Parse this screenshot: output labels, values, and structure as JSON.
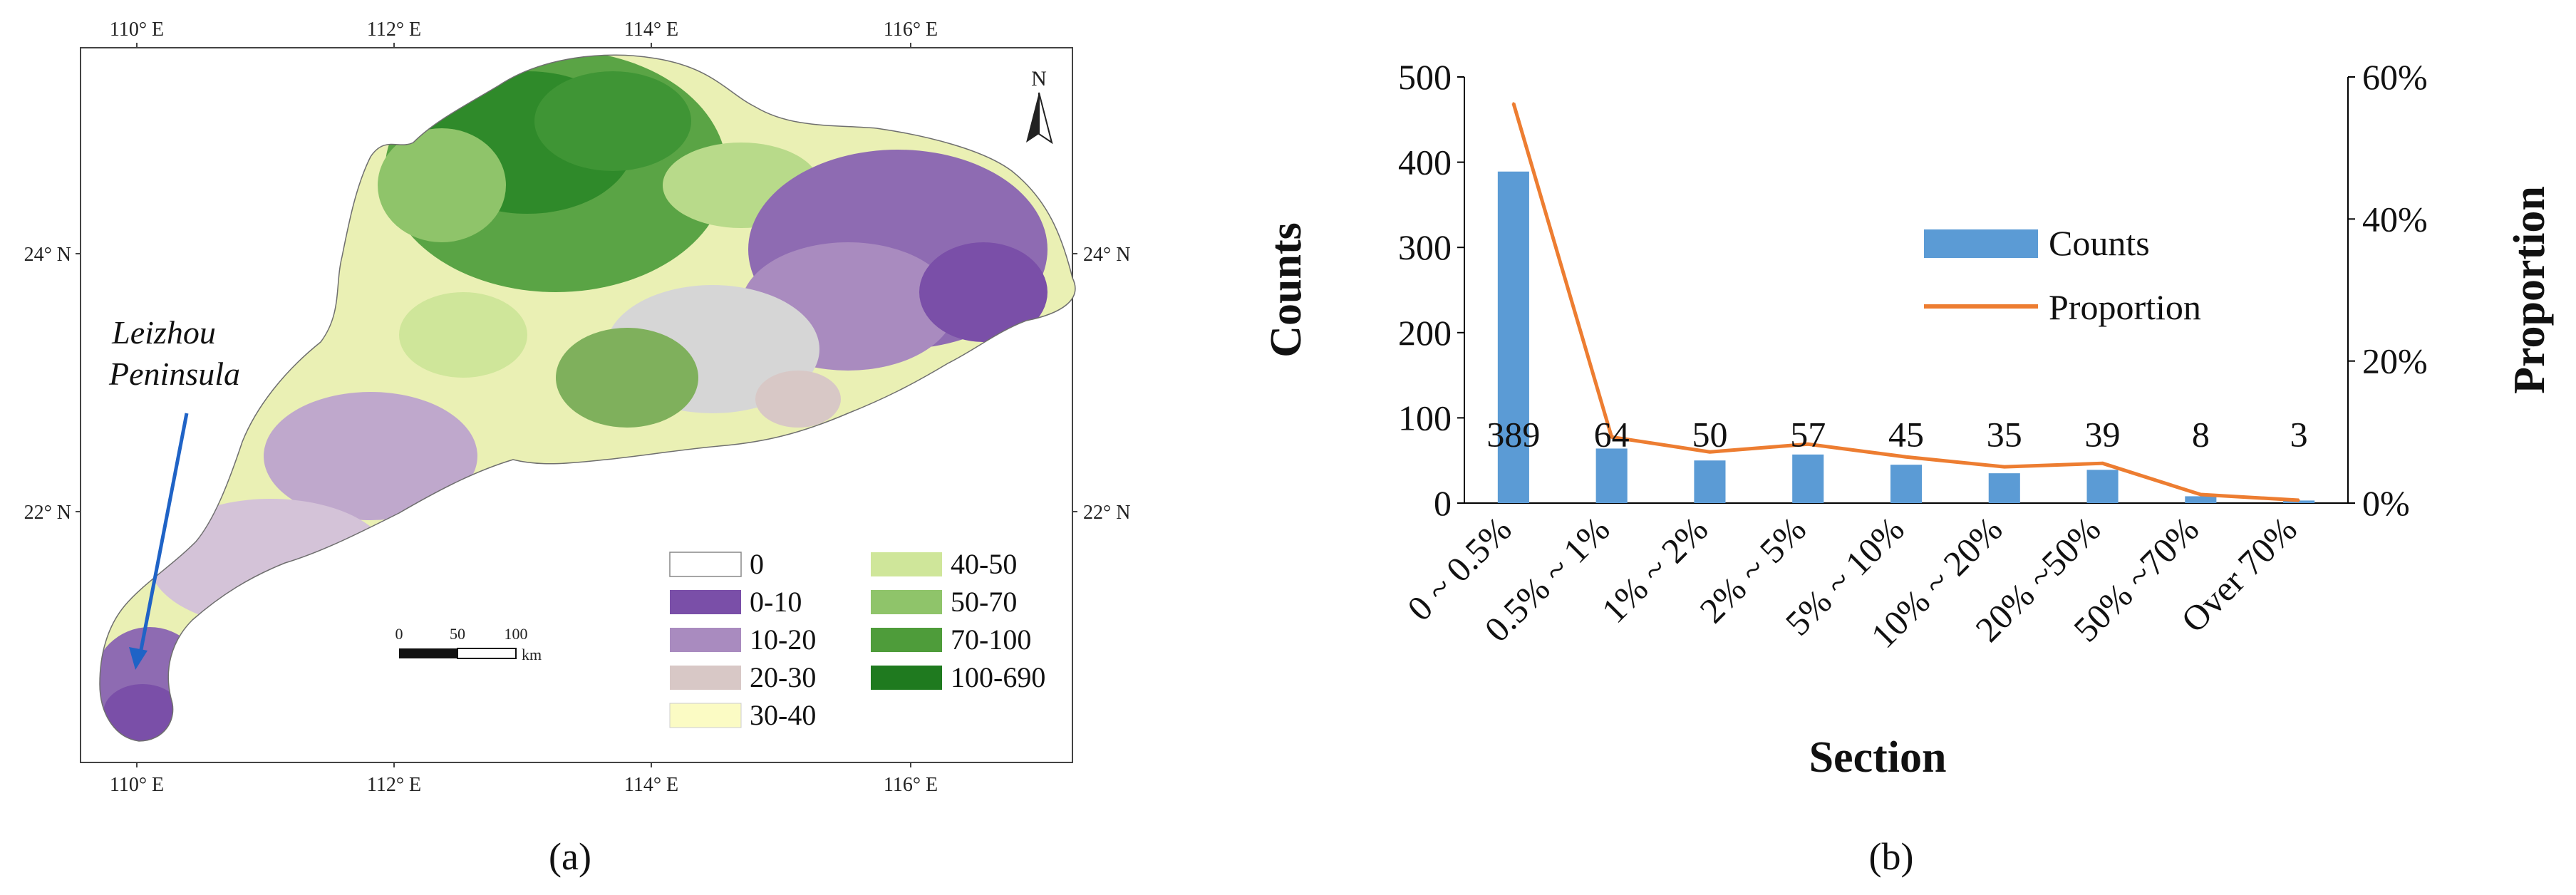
{
  "panel_a": {
    "label": "(a)",
    "top_lon_ticks": [
      "110° E",
      "112° E",
      "114° E",
      "116° E"
    ],
    "bottom_lon_ticks": [
      "110° E",
      "112° E",
      "114° E",
      "116° E"
    ],
    "left_lat_ticks": [
      "24° N",
      "22° N"
    ],
    "right_lat_ticks": [
      "24° N",
      "22° N"
    ],
    "north_label": "N",
    "annotation": [
      "Leizhou",
      "Peninsula"
    ],
    "scale_bar": {
      "ticks": [
        "0",
        "50",
        "100"
      ],
      "unit": "km"
    },
    "legend": [
      {
        "label": "0",
        "color": "#ffffff"
      },
      {
        "label": "0-10",
        "color": "#7a4fa8"
      },
      {
        "label": "10-20",
        "color": "#a98bbf"
      },
      {
        "label": "20-30",
        "color": "#d8c8c6"
      },
      {
        "label": "30-40",
        "color": "#fbfbc4"
      },
      {
        "label": "40-50",
        "color": "#cfe69a"
      },
      {
        "label": "50-70",
        "color": "#8fc46a"
      },
      {
        "label": "70-100",
        "color": "#4e9c3a"
      },
      {
        "label": "100-690",
        "color": "#1f7a1f"
      }
    ],
    "colors": {
      "arrow": "#1f63c6",
      "no_data": "#d6d6d6"
    }
  },
  "panel_b": {
    "label": "(b)"
  },
  "chart_data": {
    "type": "bar",
    "title": "",
    "xlabel": "Section",
    "ylabel": "Counts",
    "y2label": "Proportion",
    "categories": [
      "0 ~ 0.5%",
      "0.5% ~ 1%",
      "1% ~ 2%",
      "2% ~ 5%",
      "5% ~ 10%",
      "10% ~ 20%",
      "20% ~50%",
      "50% ~70%",
      "Over 70%"
    ],
    "series": [
      {
        "name": "Counts",
        "type": "bar",
        "axis": "left",
        "color": "#5b9bd5",
        "values": [
          389,
          64,
          50,
          57,
          45,
          35,
          39,
          8,
          3
        ]
      },
      {
        "name": "Proportion",
        "type": "line",
        "axis": "right",
        "color": "#ed7d31",
        "values": [
          0.563,
          0.093,
          0.072,
          0.083,
          0.065,
          0.051,
          0.056,
          0.012,
          0.004
        ]
      }
    ],
    "data_labels": [
      "389",
      "64",
      "50",
      "57",
      "45",
      "35",
      "39",
      "8",
      "3"
    ],
    "ylim": [
      0,
      500
    ],
    "yticks": [
      0,
      100,
      200,
      300,
      400,
      500
    ],
    "ytick_labels": [
      "0",
      "100",
      "200",
      "300",
      "400",
      "500"
    ],
    "y2lim": [
      0,
      0.6
    ],
    "y2ticks": [
      0,
      0.2,
      0.4,
      0.6
    ],
    "y2tick_labels": [
      "0%",
      "20%",
      "40%",
      "60%"
    ],
    "legend": [
      "Counts",
      "Proportion"
    ],
    "legend_position": "center-right"
  }
}
